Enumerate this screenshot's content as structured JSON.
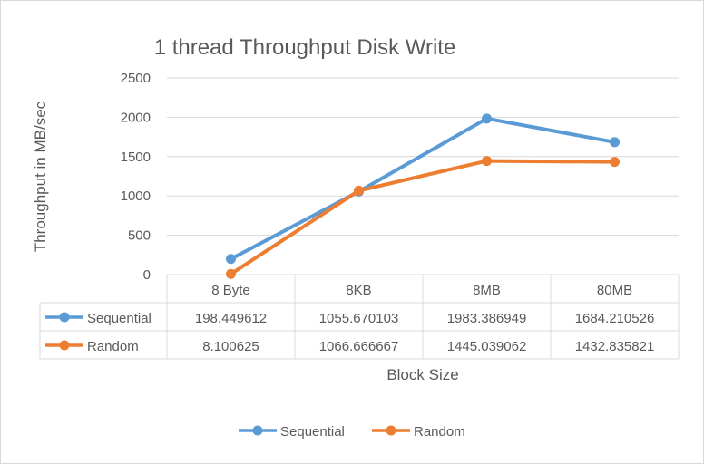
{
  "chart_data": {
    "type": "line",
    "title": "1 thread Throughput Disk Write",
    "xlabel": "Block Size",
    "ylabel": "Throughput in MB/sec",
    "categories": [
      "8 Byte",
      "8KB",
      "8MB",
      "80MB"
    ],
    "ylim": [
      0,
      2500
    ],
    "yticks": [
      0,
      500,
      1000,
      1500,
      2000,
      2500
    ],
    "grid": true,
    "legend": "bottom",
    "data_table": true,
    "series": [
      {
        "name": "Sequential",
        "color": "#5B9BD5",
        "values": [
          198.449612,
          1055.670103,
          1983.386949,
          1684.210526
        ],
        "labels": [
          "198.449612",
          "1055.670103",
          "1983.386949",
          "1684.210526"
        ]
      },
      {
        "name": "Random",
        "color": "#ED7D31",
        "values": [
          8.100625,
          1066.666667,
          1445.039062,
          1432.835821
        ],
        "labels": [
          "8.100625",
          "1066.666667",
          "1445.039062",
          "1432.835821"
        ]
      }
    ]
  }
}
